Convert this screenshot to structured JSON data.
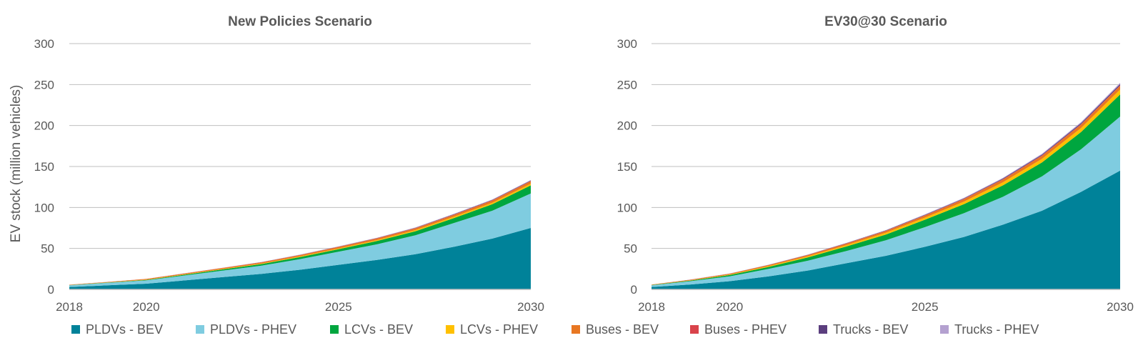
{
  "chart_data": [
    {
      "type": "area",
      "stacked": true,
      "title": "New Policies Scenario",
      "ylabel": "EV stock (million vehicles)",
      "xlabel": "",
      "ylim": [
        0,
        300
      ],
      "yticks": [
        0,
        50,
        100,
        150,
        200,
        250,
        300
      ],
      "xticks": [
        "2018",
        "2020",
        "2025",
        "2030"
      ],
      "x": [
        2018,
        2019,
        2020,
        2021,
        2022,
        2023,
        2024,
        2025,
        2026,
        2027,
        2028,
        2029,
        2030
      ],
      "grid": true,
      "series": [
        {
          "name": "PLDVs - BEV",
          "values": [
            3,
            5,
            7,
            11,
            15,
            19,
            24,
            30,
            36,
            43,
            52,
            62,
            75
          ]
        },
        {
          "name": "PLDVs - PHEV",
          "values": [
            2,
            3,
            4,
            6,
            8,
            10,
            13,
            16,
            19,
            23,
            29,
            34,
            42
          ]
        },
        {
          "name": "LCVs - BEV",
          "values": [
            0.2,
            0.4,
            0.6,
            1,
            1.5,
            2,
            2.5,
            3,
            4,
            5,
            6,
            8,
            10
          ]
        },
        {
          "name": "LCVs - PHEV",
          "values": [
            0.1,
            0.2,
            0.3,
            0.4,
            0.5,
            0.6,
            0.8,
            1,
            1.2,
            1.4,
            1.6,
            1.8,
            2
          ]
        },
        {
          "name": "Buses - BEV",
          "values": [
            0.4,
            0.5,
            0.8,
            1,
            1.2,
            1.4,
            1.6,
            1.8,
            2,
            2.2,
            2.4,
            2.7,
            3
          ]
        },
        {
          "name": "Buses - PHEV",
          "values": [
            0.05,
            0.05,
            0.1,
            0.1,
            0.15,
            0.2,
            0.2,
            0.25,
            0.3,
            0.35,
            0.4,
            0.45,
            0.5
          ]
        },
        {
          "name": "Trucks - BEV",
          "values": [
            0.02,
            0.03,
            0.05,
            0.08,
            0.1,
            0.12,
            0.15,
            0.2,
            0.25,
            0.3,
            0.35,
            0.4,
            0.5
          ]
        },
        {
          "name": "Trucks - PHEV",
          "values": [
            0.02,
            0.03,
            0.05,
            0.08,
            0.1,
            0.15,
            0.2,
            0.25,
            0.3,
            0.35,
            0.4,
            0.45,
            0.5
          ]
        }
      ]
    },
    {
      "type": "area",
      "stacked": true,
      "title": "EV30@30 Scenario",
      "ylabel": "",
      "xlabel": "",
      "ylim": [
        0,
        300
      ],
      "yticks": [
        0,
        50,
        100,
        150,
        200,
        250,
        300
      ],
      "xticks": [
        "2018",
        "2020",
        "2025",
        "2030"
      ],
      "x": [
        2018,
        2019,
        2020,
        2021,
        2022,
        2023,
        2024,
        2025,
        2026,
        2027,
        2028,
        2029,
        2030
      ],
      "grid": true,
      "series": [
        {
          "name": "PLDVs - BEV",
          "values": [
            3,
            6,
            10,
            16,
            23,
            32,
            41,
            52,
            64,
            79,
            96,
            119,
            145
          ]
        },
        {
          "name": "PLDVs - PHEV",
          "values": [
            2,
            4,
            6,
            9,
            12,
            15,
            19,
            24,
            29,
            34,
            42,
            52,
            66
          ]
        },
        {
          "name": "LCVs - BEV",
          "values": [
            0.3,
            0.8,
            1.5,
            2.5,
            4,
            5.5,
            7,
            9,
            11,
            14,
            17,
            21,
            27
          ]
        },
        {
          "name": "LCVs - PHEV",
          "values": [
            0.1,
            0.3,
            0.6,
            0.9,
            1.3,
            1.7,
            2.1,
            2.6,
            3.1,
            3.7,
            4.3,
            5,
            6
          ]
        },
        {
          "name": "Buses - BEV",
          "values": [
            0.4,
            0.7,
            1,
            1.3,
            1.6,
            1.9,
            2.2,
            2.6,
            3,
            3.4,
            3.8,
            4.2,
            4.5
          ]
        },
        {
          "name": "Buses - PHEV",
          "values": [
            0.05,
            0.1,
            0.1,
            0.15,
            0.2,
            0.25,
            0.3,
            0.35,
            0.4,
            0.45,
            0.5,
            0.55,
            0.6
          ]
        },
        {
          "name": "Trucks - BEV",
          "values": [
            0.02,
            0.05,
            0.1,
            0.15,
            0.2,
            0.3,
            0.4,
            0.5,
            0.6,
            0.8,
            1,
            1.2,
            1.5
          ]
        },
        {
          "name": "Trucks - PHEV",
          "values": [
            0.02,
            0.05,
            0.1,
            0.15,
            0.2,
            0.3,
            0.4,
            0.5,
            0.6,
            0.8,
            1,
            1.2,
            1.5
          ]
        }
      ]
    }
  ],
  "legend": {
    "placement": "bottom",
    "items": [
      {
        "label": "PLDVs - BEV",
        "color": "#008299"
      },
      {
        "label": "PLDVs - PHEV",
        "color": "#7FCCE0"
      },
      {
        "label": "LCVs - BEV",
        "color": "#00A63F"
      },
      {
        "label": "LCVs - PHEV",
        "color": "#FFC000"
      },
      {
        "label": "Buses - BEV",
        "color": "#E87722"
      },
      {
        "label": "Buses - PHEV",
        "color": "#D9434B"
      },
      {
        "label": "Trucks - BEV",
        "color": "#5B3E7E"
      },
      {
        "label": "Trucks - PHEV",
        "color": "#B4A1D0"
      }
    ]
  }
}
